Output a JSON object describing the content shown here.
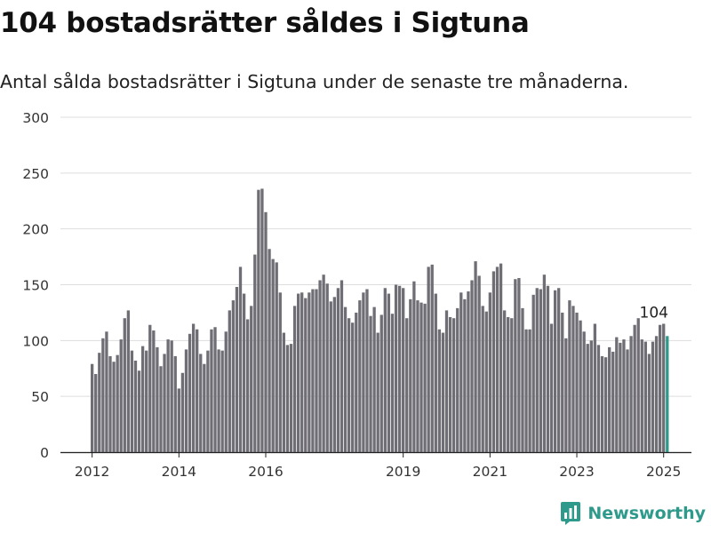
{
  "header": {
    "title": "104 bostadsrätter såldes i Sigtuna",
    "subtitle": "Antal sålda bostadsrätter i Sigtuna under de senaste tre månaderna."
  },
  "brand": {
    "name": "Newsworthy",
    "logo_icon": "newsworthy-chart-icon",
    "color": "#2e9a8b"
  },
  "colors": {
    "bar": "#6f6e75",
    "highlight": "#2e9a8b",
    "grid": "#dddddd",
    "axis": "#222222"
  },
  "chart_data": {
    "type": "bar",
    "title": "104 bostadsrätter såldes i Sigtuna",
    "xlabel": "",
    "ylabel": "",
    "ylim": [
      0,
      300
    ],
    "y_ticks": [
      0,
      50,
      100,
      150,
      200,
      250,
      300
    ],
    "x_ticks": [
      {
        "label": "2012",
        "index": 0
      },
      {
        "label": "2014",
        "index": 24
      },
      {
        "label": "2016",
        "index": 48
      },
      {
        "label": "2019",
        "index": 86
      },
      {
        "label": "2021",
        "index": 110
      },
      {
        "label": "2023",
        "index": 134
      },
      {
        "label": "2025",
        "index": 158
      }
    ],
    "grid": true,
    "highlight_label": "104",
    "values": [
      79,
      70,
      89,
      102,
      108,
      86,
      81,
      87,
      101,
      120,
      127,
      91,
      82,
      73,
      95,
      91,
      114,
      109,
      94,
      77,
      88,
      101,
      100,
      86,
      57,
      71,
      92,
      106,
      115,
      110,
      88,
      79,
      91,
      110,
      112,
      92,
      91,
      108,
      127,
      136,
      148,
      166,
      142,
      119,
      131,
      177,
      235,
      236,
      215,
      182,
      173,
      170,
      143,
      107,
      96,
      97,
      131,
      142,
      143,
      138,
      143,
      146,
      146,
      154,
      159,
      151,
      135,
      139,
      147,
      154,
      130,
      120,
      116,
      125,
      136,
      143,
      146,
      122,
      130,
      107,
      123,
      147,
      142,
      124,
      150,
      149,
      147,
      120,
      137,
      153,
      136,
      134,
      133,
      166,
      168,
      142,
      110,
      107,
      127,
      121,
      120,
      129,
      143,
      137,
      144,
      154,
      171,
      158,
      131,
      126,
      143,
      162,
      166,
      169,
      127,
      121,
      120,
      155,
      156,
      129,
      110,
      110,
      141,
      147,
      146,
      159,
      149,
      115,
      145,
      147,
      125,
      102,
      136,
      131,
      125,
      118,
      108,
      97,
      100,
      115,
      96,
      86,
      85,
      94,
      90,
      103,
      98,
      101,
      92,
      104,
      114,
      120,
      101,
      99,
      88,
      99,
      104,
      114,
      115,
      104
    ]
  }
}
